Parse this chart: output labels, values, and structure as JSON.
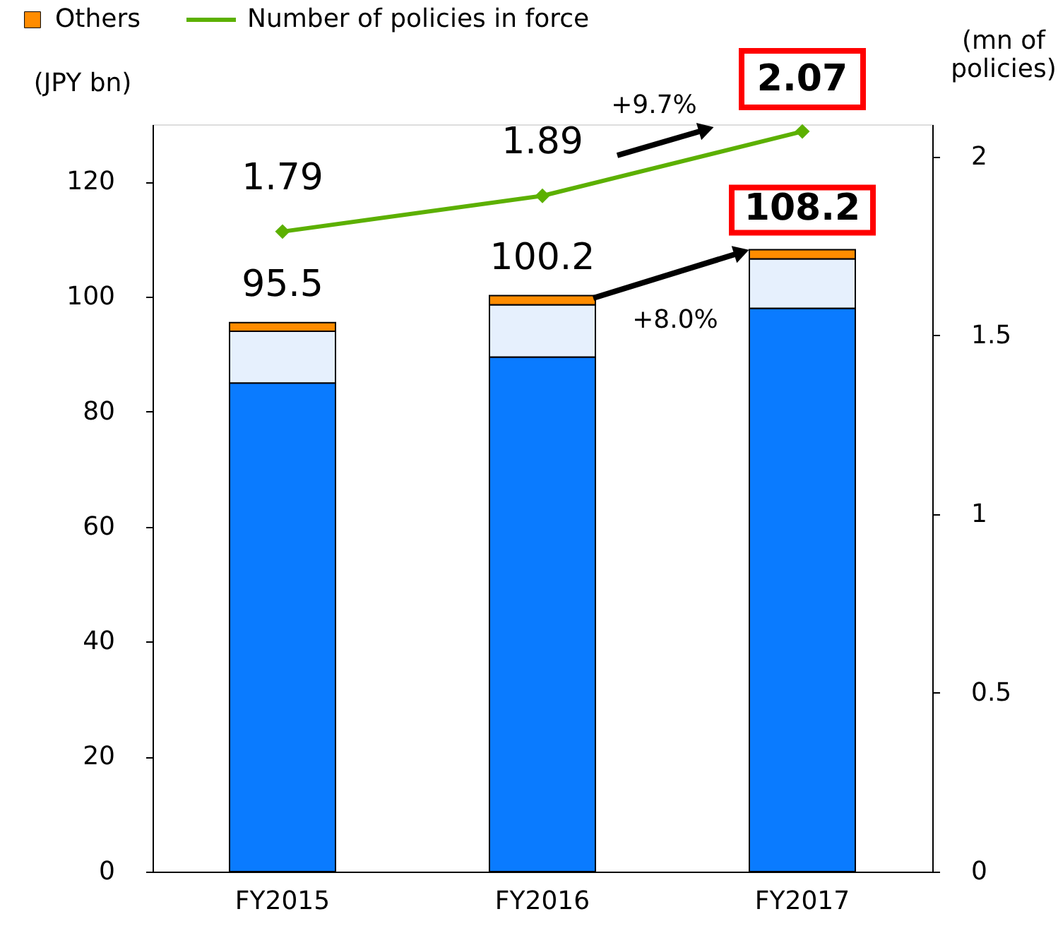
{
  "chart_data": {
    "type": "bar",
    "stacked": true,
    "categories": [
      "FY2015",
      "FY2016",
      "FY2017"
    ],
    "ylabel": "(JPY bn)",
    "y2label": "(mn of policies)",
    "ylim": [
      0,
      130
    ],
    "yticks": [
      0,
      20,
      40,
      60,
      80,
      100,
      120
    ],
    "y2lim": [
      0,
      2.09
    ],
    "y2ticks": [
      0,
      0.5,
      1,
      1.5,
      2
    ],
    "series": [
      {
        "color": "#0a7bff",
        "values": [
          85.0,
          89.5,
          98.0
        ]
      },
      {
        "color": "#e6f0fd",
        "values": [
          9.0,
          9.1,
          8.6
        ]
      },
      {
        "name": "Others",
        "color": "#ff8c00",
        "values": [
          1.5,
          1.6,
          1.6
        ]
      },
      {
        "name": "Number of policies in force",
        "type": "line",
        "axis": "y2",
        "color": "#5cb000",
        "marker": "diamond",
        "values": [
          1.79,
          1.89,
          2.07
        ],
        "value_labels": [
          "1.79",
          "1.89",
          "2.07"
        ]
      }
    ],
    "totals": [
      "95.5",
      "100.2",
      "108.2"
    ],
    "annotations": [
      "+9.7%",
      "+8.0%"
    ],
    "legend": "top left",
    "grid": false
  }
}
